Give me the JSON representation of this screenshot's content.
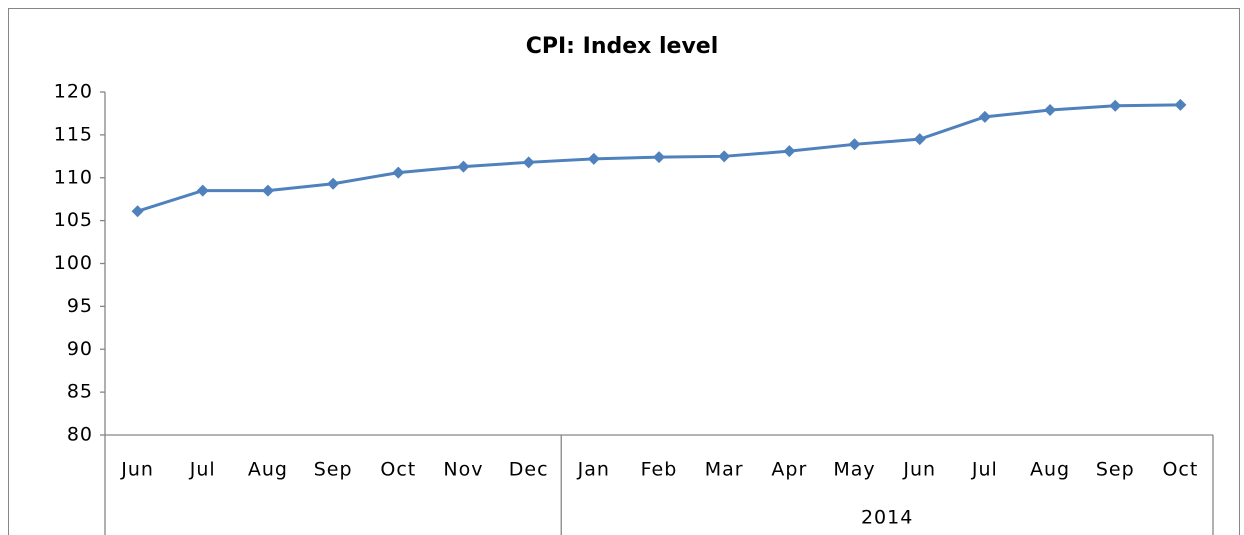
{
  "chart_data": {
    "type": "line",
    "title": "CPI: Index level",
    "categories": [
      "Jun",
      "Jul",
      "Aug",
      "Sep",
      "Oct",
      "Nov",
      "Dec",
      "Jan",
      "Feb",
      "Mar",
      "Apr",
      "May",
      "Jun",
      "Jul",
      "Aug",
      "Sep",
      "Oct"
    ],
    "group_labels": [
      null,
      "2014"
    ],
    "group_sizes": [
      7,
      10
    ],
    "series": [
      {
        "name": "CPI",
        "color": "#4f81bd",
        "values": [
          106.1,
          108.5,
          108.5,
          109.3,
          110.6,
          111.3,
          111.8,
          112.2,
          112.4,
          112.5,
          113.1,
          113.9,
          114.5,
          117.1,
          117.9,
          118.4,
          118.5
        ]
      }
    ],
    "ylim": [
      80,
      120
    ],
    "yticks": [
      80,
      85,
      90,
      95,
      100,
      105,
      110,
      115,
      120
    ],
    "grid": false,
    "legend": false
  }
}
